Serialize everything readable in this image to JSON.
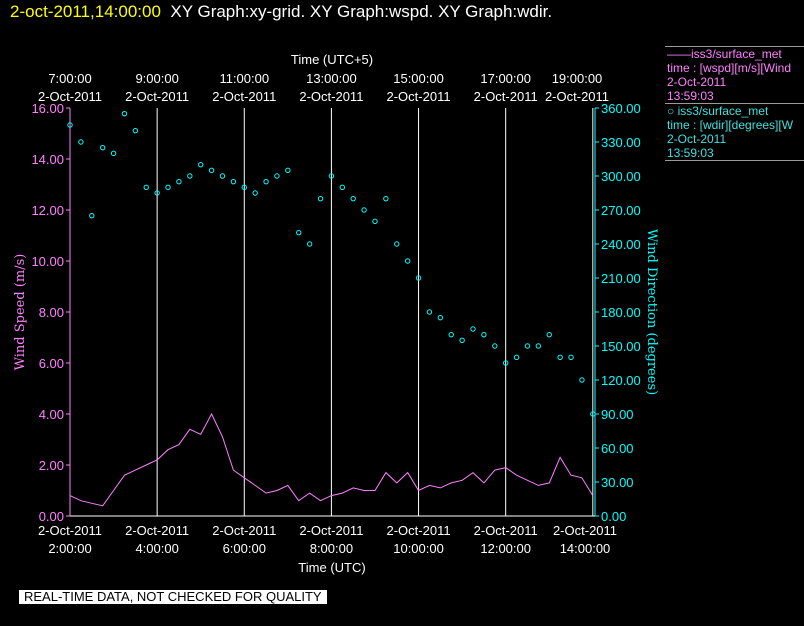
{
  "header": {
    "timestamp": "2-oct-2011,14:00:00",
    "graph_title": "XY Graph:xy-grid.  XY Graph:wspd.  XY Graph:wdir."
  },
  "legend": [
    {
      "line1": "——iss3/surface_met",
      "line2": "time : [wspd][m/s][Wind",
      "line3": "2-Oct-2011",
      "line4": "13:59:03"
    },
    {
      "line1": "○  iss3/surface_met",
      "line2": "time : [wdir][degrees][W",
      "line3": "2-Oct-2011",
      "line4": "13:59:03"
    }
  ],
  "banner": "REAL-TIME DATA, NOT CHECKED FOR QUALITY",
  "colors": {
    "wspd": "#ff80ff",
    "wdir": "#00ffff",
    "grid": "#ffffff",
    "background": "#000000"
  },
  "chart_data": {
    "type": "line",
    "x_label_bottom": "Time (UTC)",
    "x_label_top": "Time (UTC+5)",
    "xlim_hours_utc": [
      2.0,
      14.05
    ],
    "bottom_ticks": [
      {
        "hour": 2,
        "date": "2-Oct-2011",
        "time": "2:00:00"
      },
      {
        "hour": 4,
        "date": "2-Oct-2011",
        "time": "4:00:00"
      },
      {
        "hour": 6,
        "date": "2-Oct-2011",
        "time": "6:00:00"
      },
      {
        "hour": 8,
        "date": "2-Oct-2011",
        "time": "8:00:00"
      },
      {
        "hour": 10,
        "date": "2-Oct-2011",
        "time": "10:00:00"
      },
      {
        "hour": 12,
        "date": "2-Oct-2011",
        "time": "12:00:00"
      },
      {
        "hour": 14,
        "date": "2-Oct-2011",
        "time": "14:00:00"
      }
    ],
    "top_ticks": [
      {
        "hour": 2,
        "time": "7:00:00",
        "date": "2-Oct-2011"
      },
      {
        "hour": 4,
        "time": "9:00:00",
        "date": "2-Oct-2011"
      },
      {
        "hour": 6,
        "time": "11:00:00",
        "date": "2-Oct-2011"
      },
      {
        "hour": 8,
        "time": "13:00:00",
        "date": "2-Oct-2011"
      },
      {
        "hour": 10,
        "time": "15:00:00",
        "date": "2-Oct-2011"
      },
      {
        "hour": 12,
        "time": "17:00:00",
        "date": "2-Oct-2011"
      },
      {
        "hour": 14,
        "time": "19:00:00",
        "date": "2-Oct-2011"
      }
    ],
    "y_left": {
      "label": "Wind Speed (m/s)",
      "range": [
        0,
        16
      ],
      "ticks": [
        "0.00",
        "2.00",
        "4.00",
        "6.00",
        "8.00",
        "10.00",
        "12.00",
        "14.00",
        "16.00"
      ]
    },
    "y_right": {
      "label": "Wind Direction (degrees)",
      "range": [
        0,
        360
      ],
      "ticks": [
        "0.00",
        "30.00",
        "60.00",
        "90.00",
        "120.00",
        "150.00",
        "180.00",
        "210.00",
        "240.00",
        "270.00",
        "300.00",
        "330.00",
        "360.00"
      ]
    },
    "grid": "vertical",
    "series": [
      {
        "name": "iss3/surface_met",
        "variable": "wspd",
        "style": "line",
        "x_hours": [
          2.0,
          2.25,
          2.5,
          2.75,
          3.0,
          3.25,
          3.5,
          3.75,
          4.0,
          4.25,
          4.5,
          4.75,
          5.0,
          5.25,
          5.5,
          5.75,
          6.0,
          6.25,
          6.5,
          6.75,
          7.0,
          7.25,
          7.5,
          7.75,
          8.0,
          8.25,
          8.5,
          8.75,
          9.0,
          9.25,
          9.5,
          9.75,
          10.0,
          10.25,
          10.5,
          10.75,
          11.0,
          11.25,
          11.5,
          11.75,
          12.0,
          12.25,
          12.5,
          12.75,
          13.0,
          13.25,
          13.5,
          13.75,
          14.0
        ],
        "values": [
          0.8,
          0.6,
          0.5,
          0.4,
          1.0,
          1.6,
          1.8,
          2.0,
          2.2,
          2.6,
          2.8,
          3.4,
          3.2,
          4.0,
          3.1,
          1.8,
          1.5,
          1.2,
          0.9,
          1.0,
          1.2,
          0.6,
          0.9,
          0.6,
          0.8,
          0.9,
          1.1,
          1.0,
          1.0,
          1.7,
          1.3,
          1.7,
          1.0,
          1.2,
          1.1,
          1.3,
          1.4,
          1.7,
          1.3,
          1.8,
          1.9,
          1.6,
          1.4,
          1.2,
          1.3,
          2.3,
          1.6,
          1.5,
          0.8
        ]
      },
      {
        "name": "iss3/surface_met",
        "variable": "wdir",
        "style": "scatter",
        "x_hours": [
          2.0,
          2.25,
          2.5,
          2.75,
          3.0,
          3.25,
          3.5,
          3.75,
          4.0,
          4.25,
          4.5,
          4.75,
          5.0,
          5.25,
          5.5,
          5.75,
          6.0,
          6.25,
          6.5,
          6.75,
          7.0,
          7.25,
          7.5,
          7.75,
          8.0,
          8.25,
          8.5,
          8.75,
          9.0,
          9.25,
          9.5,
          9.75,
          10.0,
          10.25,
          10.5,
          10.75,
          11.0,
          11.25,
          11.5,
          11.75,
          12.0,
          12.25,
          12.5,
          12.75,
          13.0,
          13.25,
          13.5,
          13.75,
          14.0
        ],
        "values": [
          345,
          330,
          265,
          325,
          320,
          355,
          340,
          290,
          285,
          290,
          295,
          300,
          310,
          305,
          300,
          295,
          290,
          285,
          295,
          300,
          305,
          250,
          240,
          280,
          300,
          290,
          280,
          270,
          260,
          280,
          240,
          225,
          210,
          180,
          175,
          160,
          155,
          165,
          160,
          150,
          135,
          140,
          150,
          150,
          160,
          140,
          140,
          120,
          90
        ]
      }
    ]
  }
}
